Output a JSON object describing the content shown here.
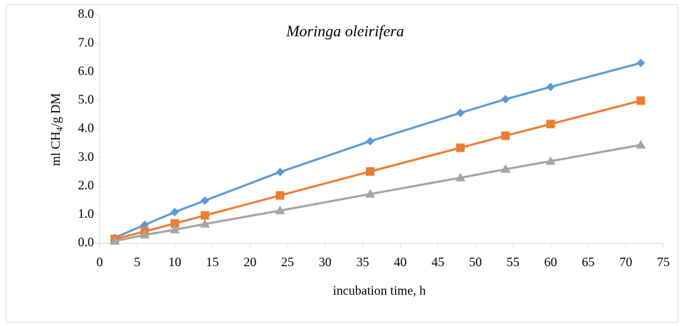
{
  "chart_data": {
    "type": "line",
    "title": "Moringa oleirifera",
    "x_label": "incubation time, h",
    "y_label": [
      "ml CH",
      "4",
      "/g DM"
    ],
    "x": [
      2,
      6,
      10,
      14,
      24,
      36,
      48,
      54,
      60,
      72
    ],
    "series": [
      {
        "color": "#5b9bd5",
        "marker": "diamond",
        "values": [
          0.2,
          0.65,
          1.1,
          1.5,
          2.5,
          3.58,
          4.57,
          5.05,
          5.48,
          6.32
        ]
      },
      {
        "color": "#ed7d31",
        "marker": "square",
        "values": [
          0.15,
          0.42,
          0.7,
          0.98,
          1.68,
          2.52,
          3.35,
          3.77,
          4.18,
          5.0
        ]
      },
      {
        "color": "#a5a5a5",
        "marker": "triangle",
        "values": [
          0.08,
          0.3,
          0.48,
          0.68,
          1.15,
          1.73,
          2.3,
          2.6,
          2.88,
          3.45
        ]
      }
    ],
    "xlim": [
      0,
      75
    ],
    "xticks": [
      0,
      5,
      10,
      15,
      20,
      25,
      30,
      35,
      40,
      45,
      50,
      55,
      60,
      65,
      70,
      75
    ],
    "ylim": [
      0,
      8
    ],
    "yticks": [
      {
        "value": 0,
        "label": "0.0"
      },
      {
        "value": 1,
        "label": "1.0"
      },
      {
        "value": 2,
        "label": "2.0"
      },
      {
        "value": 3,
        "label": "3.0"
      },
      {
        "value": 4,
        "label": "4.0"
      },
      {
        "value": 5,
        "label": "5.0"
      },
      {
        "value": 6,
        "label": "6.0"
      },
      {
        "value": 7,
        "label": "7.0"
      },
      {
        "value": 8,
        "label": "8.0"
      }
    ],
    "grid": false
  }
}
